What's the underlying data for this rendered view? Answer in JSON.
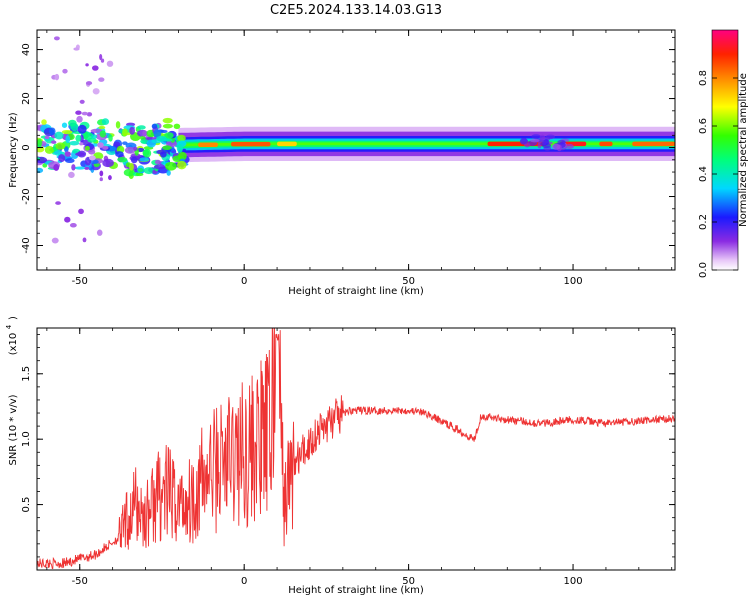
{
  "title": "C2E5.2024.133.14.03.G13",
  "chart_data": [
    {
      "type": "heatmap",
      "xlabel": "Height of straight line (km)",
      "ylabel": "Frequency (Hz)",
      "xlim": [
        -63,
        131
      ],
      "ylim": [
        -50,
        48
      ],
      "xticks": [
        "-50",
        "0",
        "50",
        "100"
      ],
      "yticks": [
        "-40",
        "-20",
        "0",
        "20",
        "40"
      ],
      "colorbar": {
        "label": "Normalized spectral amplitude",
        "range": [
          0.0,
          1.0
        ],
        "ticks": [
          "0.0",
          "0.2",
          "0.4",
          "0.6",
          "0.8"
        ]
      },
      "ridge": {
        "description_values": [
          {
            "x": -63,
            "y": 0
          },
          {
            "x": -20,
            "y": 1
          },
          {
            "x": 0,
            "y": 1.5
          },
          {
            "x": 50,
            "y": 1.5
          },
          {
            "x": 100,
            "y": 1.5
          },
          {
            "x": 131,
            "y": 1.5
          }
        ]
      }
    },
    {
      "type": "line",
      "xlabel": "Height of straight line (km)",
      "ylabel": "SNR (10 * v/v)",
      "scale_label": "(x10",
      "scale_exp": "4",
      "xlim": [
        -63,
        131
      ],
      "ylim": [
        0,
        1.85
      ],
      "xticks": [
        "-50",
        "0",
        "50",
        "100"
      ],
      "yticks": [
        "0.5",
        "1.0",
        "1.5"
      ],
      "series": [
        {
          "color": "#ee3333",
          "points": [
            [
              -63,
              0.05
            ],
            [
              -55,
              0.05
            ],
            [
              -45,
              0.12
            ],
            [
              -38,
              0.25
            ],
            [
              -33,
              0.5
            ],
            [
              -30,
              0.4
            ],
            [
              -27,
              0.55
            ],
            [
              -24,
              0.6
            ],
            [
              -20,
              0.5
            ],
            [
              -16,
              0.55
            ],
            [
              -12,
              0.7
            ],
            [
              -8,
              0.8
            ],
            [
              -4,
              0.85
            ],
            [
              0,
              0.9
            ],
            [
              4,
              0.95
            ],
            [
              8,
              1.05
            ],
            [
              10,
              1.85
            ],
            [
              12,
              0.5
            ],
            [
              15,
              0.8
            ],
            [
              18,
              0.9
            ],
            [
              22,
              1.05
            ],
            [
              27,
              1.15
            ],
            [
              32,
              1.22
            ],
            [
              40,
              1.22
            ],
            [
              50,
              1.22
            ],
            [
              55,
              1.2
            ],
            [
              63,
              1.1
            ],
            [
              70,
              1.0
            ],
            [
              72,
              1.18
            ],
            [
              80,
              1.15
            ],
            [
              90,
              1.12
            ],
            [
              100,
              1.15
            ],
            [
              110,
              1.12
            ],
            [
              120,
              1.14
            ],
            [
              131,
              1.16
            ]
          ]
        }
      ]
    }
  ]
}
